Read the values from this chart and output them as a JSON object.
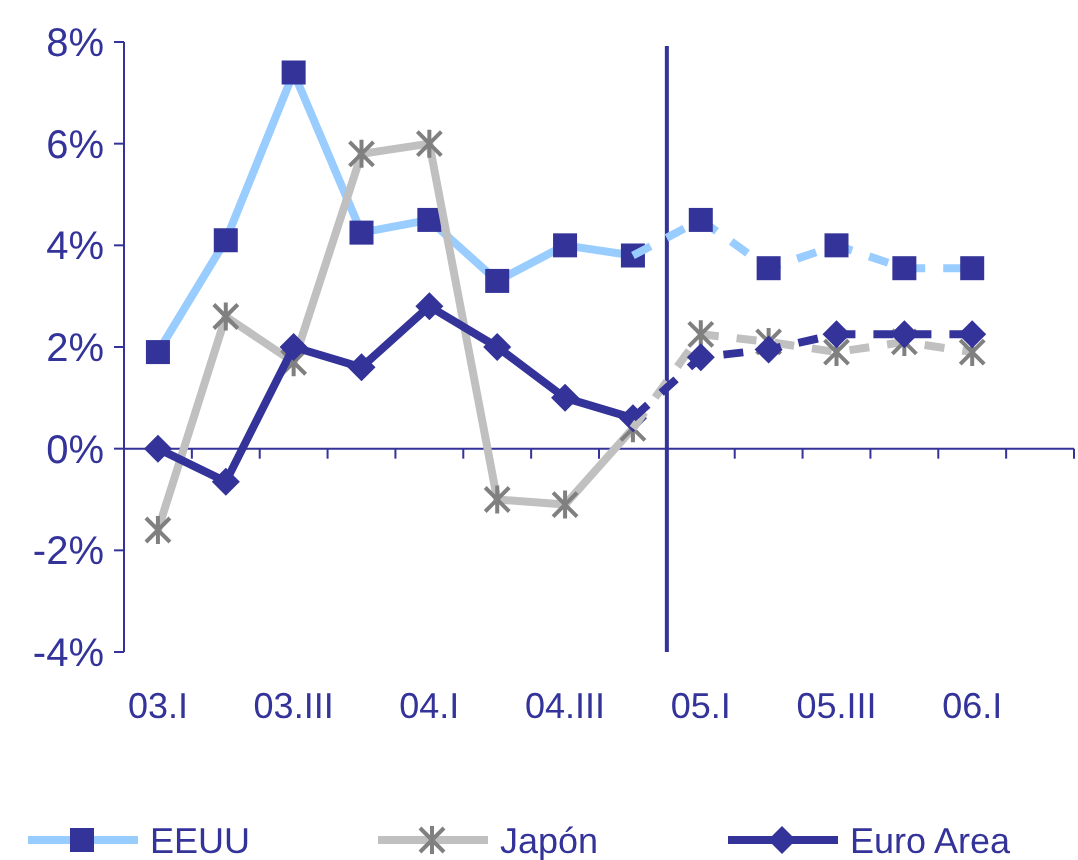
{
  "chart_data": {
    "type": "line",
    "categories": [
      "03.I",
      null,
      "03.III",
      null,
      "04.I",
      null,
      "04.III",
      null,
      "05.I",
      null,
      "05.III",
      null,
      "06.I",
      null
    ],
    "series": [
      {
        "name": "EEUU",
        "color": "#99ccff",
        "marker": "square",
        "line_style": "solid",
        "colors": [
          "#333399",
          "#333399",
          "#333399",
          "#333399",
          "#333399",
          "#333399",
          "#333399",
          "#333399",
          null,
          null,
          null,
          null,
          null,
          null
        ],
        "values": [
          1.9,
          4.1,
          7.4,
          4.25,
          4.5,
          3.3,
          4.0,
          3.8,
          null,
          null,
          null,
          null,
          null,
          null
        ]
      },
      {
        "name": "Japón",
        "color": "#c0c0c0",
        "marker": "cross",
        "line_style": "solid",
        "colors": [
          "#808080",
          "#808080",
          "#808080",
          "#808080",
          "#808080",
          "#808080",
          "#808080",
          "#808080",
          null,
          null,
          null,
          null,
          null,
          null
        ],
        "values": [
          -1.6,
          2.6,
          1.7,
          5.8,
          6.0,
          -1.0,
          -1.1,
          0.4,
          null,
          null,
          null,
          null,
          null,
          null
        ]
      },
      {
        "name": "Euro Area",
        "color": "#333399",
        "marker": "diamond",
        "line_style": "solid",
        "colors": [
          "#333399",
          "#333399",
          "#333399",
          "#333399",
          "#333399",
          "#333399",
          "#333399",
          "#333399",
          null,
          null,
          null,
          null,
          null,
          null
        ],
        "values": [
          0,
          -0.65,
          2.0,
          1.6,
          2.8,
          2.0,
          1.0,
          0.6,
          null,
          null,
          null,
          null,
          null,
          null
        ]
      },
      {
        "color": "#99ccff",
        "marker": "square",
        "line_style": "dashed",
        "colors": [
          null,
          null,
          null,
          null,
          null,
          null,
          null,
          null,
          "#333399",
          "#333399",
          "#333399",
          "#333399",
          "#333399",
          "#333399"
        ],
        "values": [
          null,
          null,
          null,
          null,
          null,
          null,
          null,
          3.8,
          4.5,
          3.55,
          4.0,
          3.55,
          3.55,
          null
        ]
      },
      {
        "color": "#c0c0c0",
        "marker": "cross",
        "line_style": "dashed",
        "colors": [
          null,
          null,
          null,
          null,
          null,
          null,
          null,
          null,
          "#808080",
          "#808080",
          "#808080",
          "#808080",
          "#808080",
          "#808080"
        ],
        "values": [
          null,
          null,
          null,
          null,
          null,
          null,
          null,
          0.4,
          2.25,
          2.1,
          1.9,
          2.1,
          1.9,
          null
        ]
      },
      {
        "color": "#333399",
        "marker": "diamond",
        "line_style": "dashed",
        "colors": [
          null,
          null,
          null,
          null,
          null,
          null,
          null,
          null,
          "#333399",
          "#333399",
          "#333399",
          "#333399",
          "#333399",
          "#333399"
        ],
        "values": [
          null,
          null,
          null,
          null,
          null,
          null,
          null,
          0.6,
          1.8,
          1.95,
          2.25,
          2.25,
          2.25,
          null
        ]
      }
    ],
    "ylim": [
      -4,
      8
    ],
    "yticks": [
      {
        "value": -4,
        "label": "-4%"
      },
      {
        "value": -2,
        "label": "-2%"
      },
      {
        "value": 0,
        "label": "0%"
      },
      {
        "value": 2,
        "label": "2%"
      },
      {
        "value": 4,
        "label": "4%"
      },
      {
        "value": 6,
        "label": "6%"
      },
      {
        "value": 8,
        "label": "8%"
      }
    ],
    "ref_lines": [
      {
        "axis": "y",
        "value": 0,
        "color": "#333399",
        "line_style": "solid"
      }
    ],
    "grid": false,
    "legend": "bottom"
  }
}
